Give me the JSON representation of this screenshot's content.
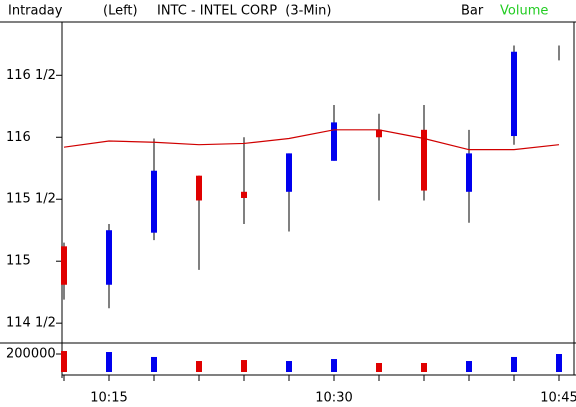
{
  "toolbar": {
    "mode": "Intraday",
    "axis_side": "(Left)",
    "symbol": "INTC - INTEL CORP  (3-Min)",
    "bar": "Bar",
    "volume": "Volume"
  },
  "chart_data": [
    {
      "type": "candlestick",
      "categories": [
        null,
        "10:15",
        null,
        null,
        null,
        null,
        "10:30",
        null,
        null,
        null,
        null,
        "10:45"
      ],
      "open": [
        115.12,
        114.81,
        115.23,
        115.69,
        115.56,
        115.56,
        115.81,
        116.06,
        116.06,
        115.56,
        116.01,
        116.69
      ],
      "high": [
        115.15,
        115.3,
        115.99,
        115.69,
        116.0,
        115.87,
        116.26,
        116.19,
        116.26,
        116.06,
        116.74,
        116.74
      ],
      "low": [
        114.69,
        114.62,
        115.17,
        114.93,
        115.3,
        115.24,
        115.81,
        115.49,
        115.49,
        115.31,
        115.94,
        116.62
      ],
      "close": [
        114.81,
        115.25,
        115.73,
        115.49,
        115.51,
        115.87,
        116.12,
        116.0,
        115.57,
        115.87,
        116.69,
        116.69
      ],
      "up_color": "#0000ee",
      "down_color": "#e00000",
      "overlay": {
        "type": "line",
        "color": "#d00000",
        "values": [
          115.92,
          115.97,
          115.96,
          115.94,
          115.95,
          115.99,
          116.06,
          116.06,
          115.99,
          115.9,
          115.9,
          115.94
        ]
      },
      "ylim": [
        114.34,
        116.93
      ],
      "yticks": [
        {
          "value": 114.5,
          "label": "114 1/2"
        },
        {
          "value": 115,
          "label": "115"
        },
        {
          "value": 115.5,
          "label": "115 1/2"
        },
        {
          "value": 116,
          "label": "116"
        },
        {
          "value": 116.5,
          "label": "116 1/2"
        }
      ]
    },
    {
      "type": "bar",
      "values": [
        233000,
        222000,
        167000,
        122000,
        133000,
        122000,
        144000,
        100000,
        100000,
        122000,
        167000,
        200000
      ],
      "colors": [
        "#e00000",
        "#0000ee",
        "#0000ee",
        "#e00000",
        "#e00000",
        "#0000ee",
        "#0000ee",
        "#e00000",
        "#e00000",
        "#0000ee",
        "#0000ee",
        "#0000ee"
      ],
      "ylim": [
        0,
        300000
      ],
      "yticks": [
        200000
      ]
    }
  ]
}
